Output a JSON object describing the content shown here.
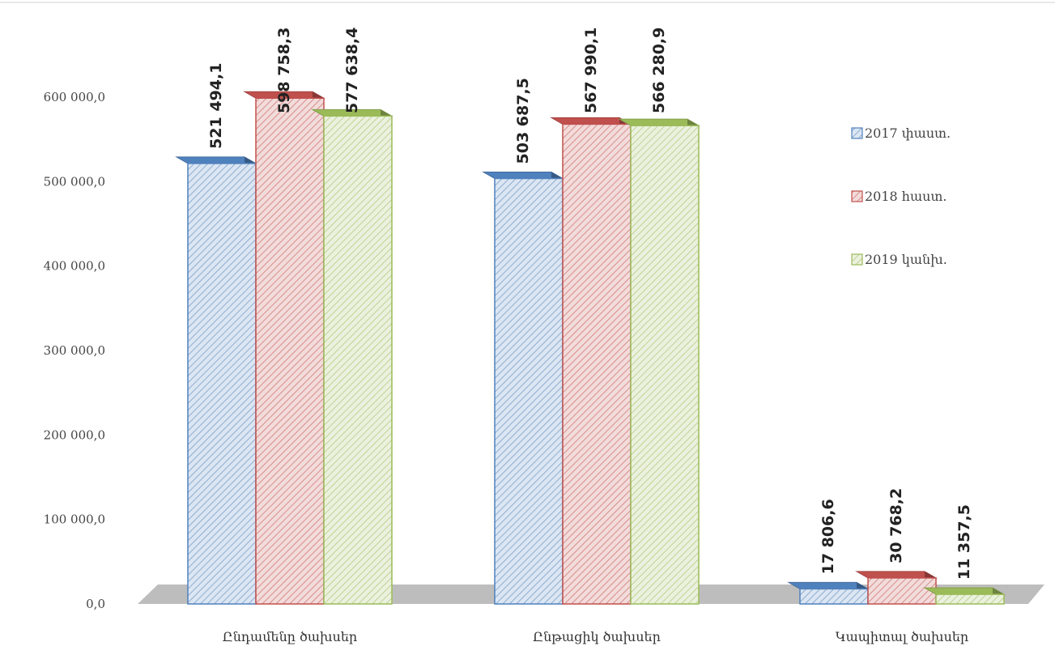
{
  "chart_data": {
    "type": "bar",
    "categories": [
      "Ընդամենը ծախսեր",
      "Ընթացիկ ծախսեր",
      "Կապիտալ ծախսեր"
    ],
    "series": [
      {
        "name": "2017 փաստ.",
        "values": [
          521494.1,
          503687.5,
          17806.6
        ],
        "labels": [
          "521 494,1",
          "503 687,5",
          "17 806,6"
        ],
        "color": "#4f81bd"
      },
      {
        "name": "2018 հաստ.",
        "values": [
          598758.3,
          567990.1,
          30768.2
        ],
        "labels": [
          "598 758,3",
          "567 990,1",
          "30 768,2"
        ],
        "color": "#c0504d"
      },
      {
        "name": "2019 կանխ.",
        "values": [
          577638.4,
          566280.9,
          11357.5
        ],
        "labels": [
          "577 638,4",
          "566 280,9",
          "11 357,5"
        ],
        "color": "#9bbb59"
      }
    ],
    "yticks": [
      "0,0",
      "100 000,0",
      "200 000,0",
      "300 000,0",
      "400 000,0",
      "500 000,0",
      "600 000,0"
    ],
    "ylim": [
      0,
      600000
    ],
    "legend_position": "right",
    "style": "3d-clustered-column-hatched",
    "grid": false
  }
}
